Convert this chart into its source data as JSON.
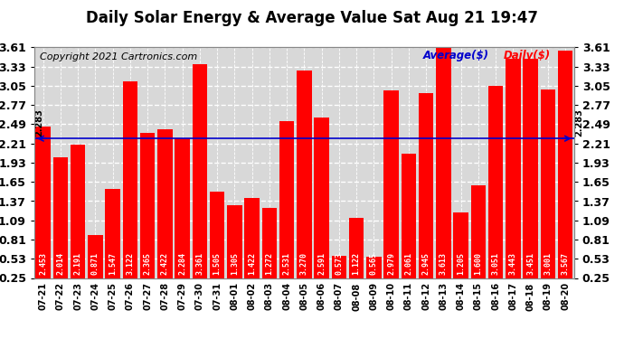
{
  "title": "Daily Solar Energy & Average Value Sat Aug 21 19:47",
  "copyright": "Copyright 2021 Cartronics.com",
  "categories": [
    "07-21",
    "07-22",
    "07-23",
    "07-24",
    "07-25",
    "07-26",
    "07-27",
    "07-28",
    "07-29",
    "07-30",
    "07-31",
    "08-01",
    "08-02",
    "08-03",
    "08-04",
    "08-05",
    "08-06",
    "08-07",
    "08-08",
    "08-09",
    "08-10",
    "08-11",
    "08-12",
    "08-13",
    "08-14",
    "08-15",
    "08-16",
    "08-17",
    "08-18",
    "08-19",
    "08-20"
  ],
  "values": [
    2.453,
    2.014,
    2.191,
    0.871,
    1.547,
    3.122,
    2.365,
    2.422,
    2.284,
    3.361,
    1.505,
    1.305,
    1.422,
    1.272,
    2.531,
    3.27,
    2.591,
    0.573,
    1.122,
    0.565,
    2.979,
    2.061,
    2.945,
    3.613,
    1.205,
    1.6,
    3.051,
    3.443,
    3.451,
    3.001,
    3.567
  ],
  "average": 2.283,
  "ylim": [
    0.25,
    3.61
  ],
  "yticks": [
    0.25,
    0.53,
    0.81,
    1.09,
    1.37,
    1.65,
    1.93,
    2.21,
    2.49,
    2.77,
    3.05,
    3.33,
    3.61
  ],
  "bar_color": "#ff0000",
  "avg_line_color": "#0000cc",
  "avg_label": "Average($)",
  "daily_label": "Daily($)",
  "avg_label_color": "#0000cc",
  "daily_label_color": "#ff0000",
  "title_fontsize": 12,
  "copyright_fontsize": 8,
  "tick_fontsize": 9,
  "bar_label_fontsize": 6,
  "background_color": "#ffffff",
  "plot_bg_color": "#d8d8d8",
  "grid_color": "#ffffff",
  "avg_annotation": "2.283"
}
